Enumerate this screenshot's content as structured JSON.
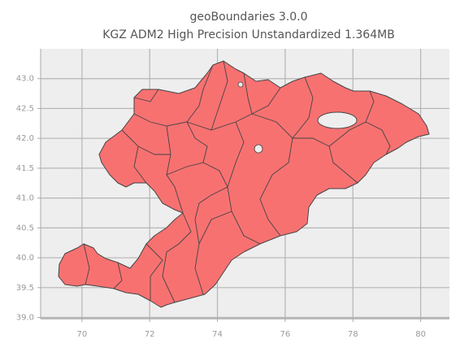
{
  "chart_data": {
    "type": "map",
    "title": "geoBoundaries 3.0.0",
    "subtitle": "KGZ ADM2 High Precision Unstandardized 1.364MB",
    "xlim": [
      68.78,
      80.85
    ],
    "ylim": [
      38.98,
      43.5
    ],
    "xticks": [
      70,
      72,
      74,
      76,
      78,
      80
    ],
    "yticks": [
      {
        "value": 39,
        "label": "39.0"
      },
      {
        "value": 39.5,
        "label": "39.5"
      },
      {
        "value": 40,
        "label": "40.0"
      },
      {
        "value": 40.5,
        "label": "40.5"
      },
      {
        "value": 41,
        "label": "41.0"
      },
      {
        "value": 41.5,
        "label": "41.5"
      },
      {
        "value": 42,
        "label": "42.0"
      },
      {
        "value": 42.5,
        "label": "42.5"
      },
      {
        "value": 43,
        "label": "43.0"
      }
    ],
    "grid": true,
    "color": "#f87171"
  }
}
